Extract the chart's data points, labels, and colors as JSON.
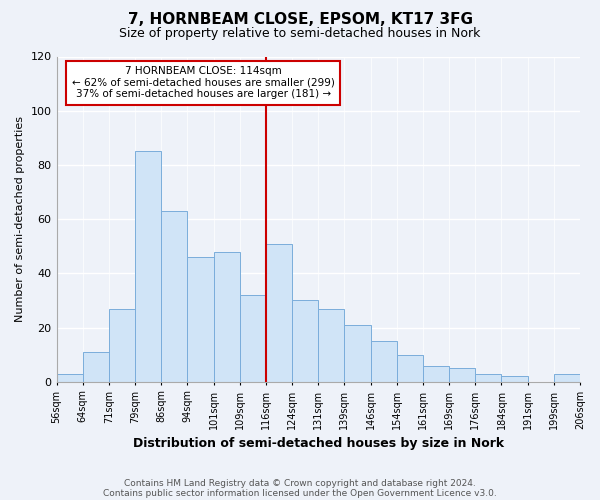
{
  "title": "7, HORNBEAM CLOSE, EPSOM, KT17 3FG",
  "subtitle": "Size of property relative to semi-detached houses in Nork",
  "xlabel": "Distribution of semi-detached houses by size in Nork",
  "ylabel": "Number of semi-detached properties",
  "footnote1": "Contains HM Land Registry data © Crown copyright and database right 2024.",
  "footnote2": "Contains public sector information licensed under the Open Government Licence v3.0.",
  "bin_labels": [
    "56sqm",
    "64sqm",
    "71sqm",
    "79sqm",
    "86sqm",
    "94sqm",
    "101sqm",
    "109sqm",
    "116sqm",
    "124sqm",
    "131sqm",
    "139sqm",
    "146sqm",
    "154sqm",
    "161sqm",
    "169sqm",
    "176sqm",
    "184sqm",
    "191sqm",
    "199sqm",
    "206sqm"
  ],
  "bar_heights": [
    3,
    11,
    27,
    85,
    63,
    46,
    48,
    32,
    51,
    30,
    27,
    21,
    15,
    10,
    6,
    5,
    3,
    2,
    0,
    3
  ],
  "bar_color": "#d0e4f7",
  "bar_edge_color": "#7aaddb",
  "vline_x_idx": 8,
  "vline_color": "#cc0000",
  "ann_line1": "7 HORNBEAM CLOSE: 114sqm",
  "ann_line2": "← 62% of semi-detached houses are smaller (299)",
  "ann_line3": "37% of semi-detached houses are larger (181) →",
  "annotation_box_color": "#cc0000",
  "annotation_box_fill": "#ffffff",
  "ylim": [
    0,
    120
  ],
  "yticks": [
    0,
    20,
    40,
    60,
    80,
    100,
    120
  ],
  "background_color": "#eef2f9",
  "grid_color": "#ffffff",
  "title_fontsize": 11,
  "subtitle_fontsize": 9,
  "ylabel_fontsize": 8,
  "xlabel_fontsize": 9,
  "tick_fontsize": 7,
  "footnote_fontsize": 6.5
}
